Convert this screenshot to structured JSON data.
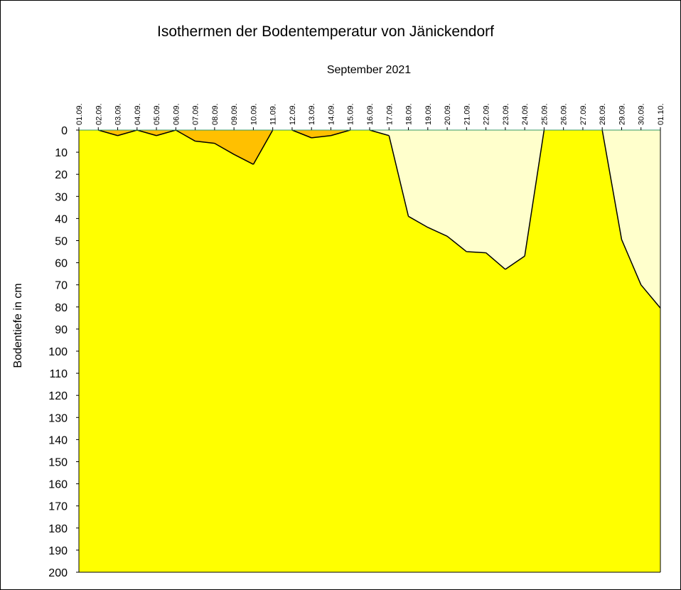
{
  "chart_data": {
    "type": "area",
    "title": "Isothermen der Bodentemperatur von Jänickendorf",
    "subtitle": "September 2021",
    "xlabel": "",
    "ylabel": "Bodentiefe in cm",
    "categories": [
      "01.09.",
      "02.09.",
      "03.09.",
      "04.09.",
      "05.09.",
      "06.09.",
      "07.09.",
      "08.09.",
      "09.09.",
      "10.09.",
      "11.09.",
      "12.09.",
      "13.09.",
      "14.09.",
      "15.09.",
      "16.09.",
      "17.09.",
      "18.09.",
      "19.09.",
      "20.09.",
      "21.09.",
      "22.09.",
      "23.09.",
      "24.09.",
      "25.09.",
      "26.09.",
      "27.09.",
      "28.09.",
      "29.09.",
      "30.09.",
      "01.10."
    ],
    "ylim": [
      0,
      200
    ],
    "y_inverted": true,
    "y_ticks": [
      0,
      10,
      20,
      30,
      40,
      50,
      60,
      70,
      80,
      90,
      100,
      110,
      120,
      130,
      140,
      150,
      160,
      170,
      180,
      190,
      200
    ],
    "series": [
      {
        "color": "#FFC000",
        "values": [
          0,
          0,
          2.5,
          0,
          2.5,
          0,
          5,
          6,
          11,
          15.5,
          0,
          0,
          3.5,
          2.5,
          0,
          0,
          0,
          0,
          0,
          0,
          0,
          0,
          0,
          0,
          0,
          0,
          0,
          0,
          0,
          0,
          0
        ]
      },
      {
        "color": "#FFFFCC",
        "values": [
          0,
          0,
          0,
          0,
          0,
          0,
          0,
          0,
          0,
          0,
          0,
          0,
          0,
          0,
          0,
          0,
          2.5,
          39,
          44,
          48,
          55,
          55.5,
          63,
          57,
          0,
          0,
          0,
          0,
          49.5,
          70,
          80.5
        ]
      }
    ],
    "base_color": "#FFFF00",
    "line_color": "#000000",
    "axis_color": "#339966"
  }
}
